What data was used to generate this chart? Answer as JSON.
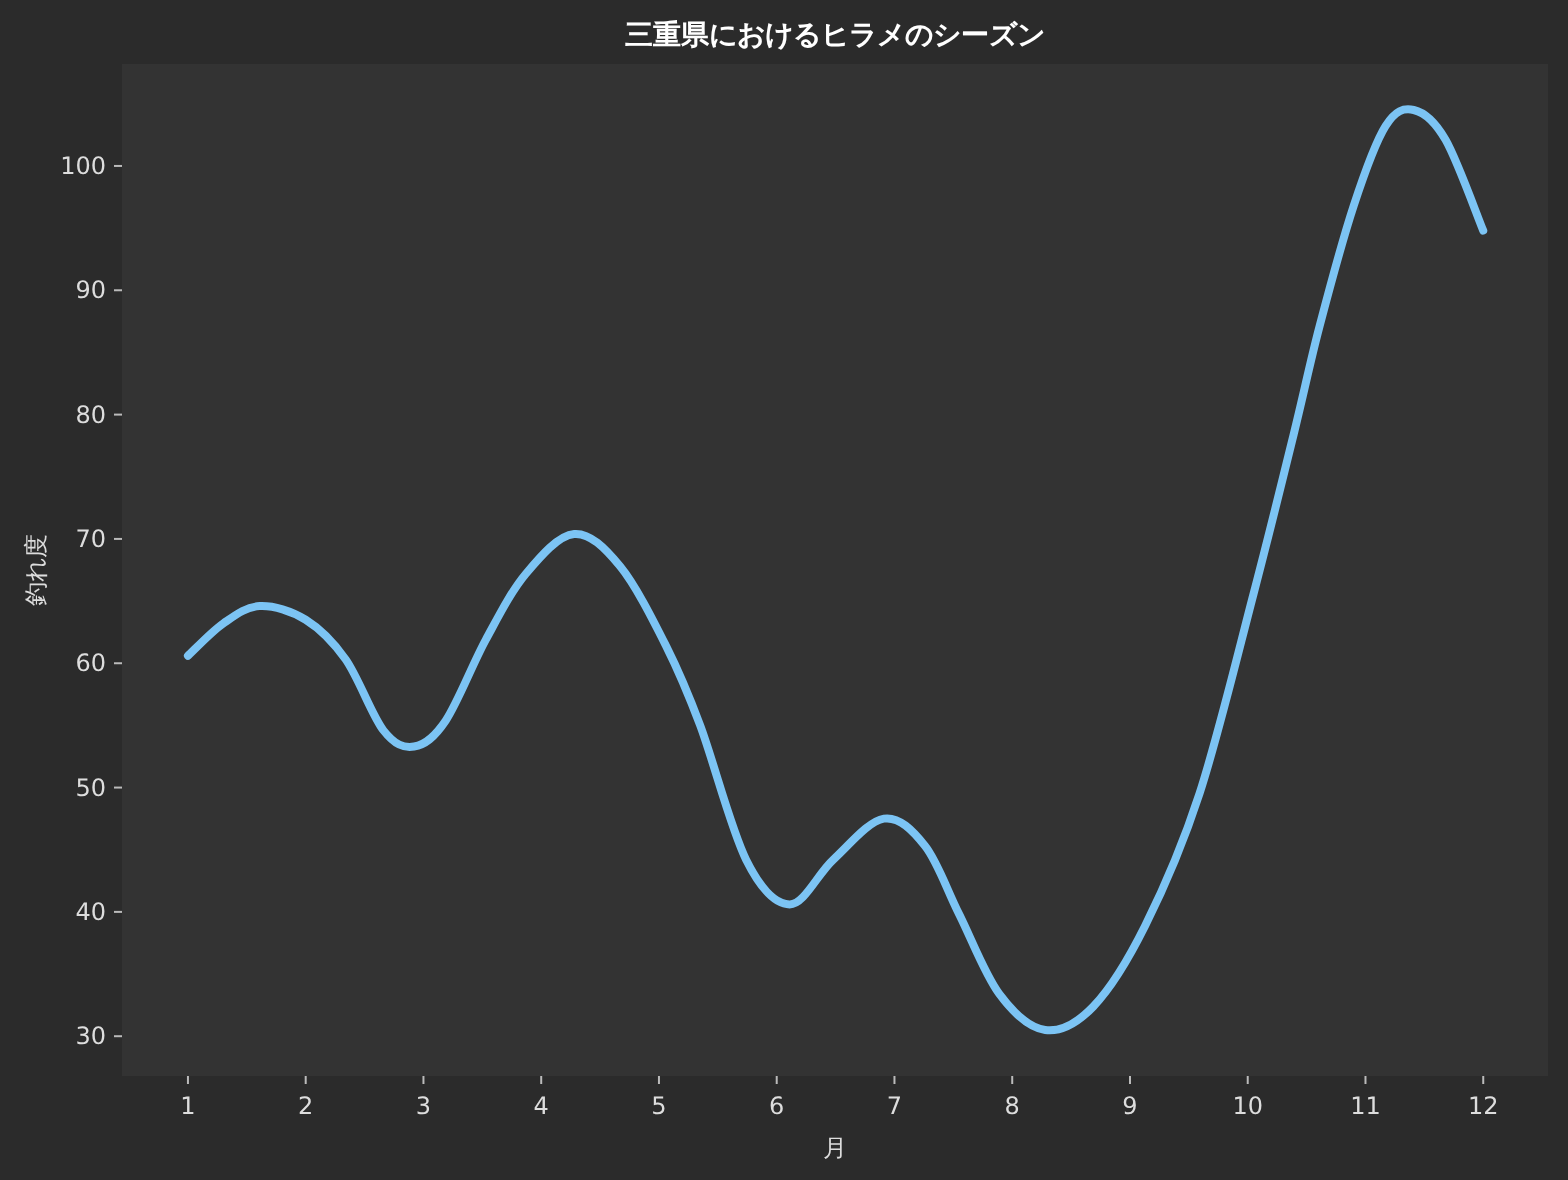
{
  "chart_data": {
    "type": "line",
    "title": "三重県におけるヒラメのシーズン",
    "xlabel": "月",
    "ylabel": "釣れ度",
    "xlim": [
      0.44,
      12.55
    ],
    "ylim": [
      26.8,
      108.2
    ],
    "xticks": [
      1,
      2,
      3,
      4,
      5,
      6,
      7,
      8,
      9,
      10,
      11,
      12
    ],
    "yticks": [
      30,
      40,
      50,
      60,
      70,
      80,
      90,
      100
    ],
    "grid": false,
    "marker": "none",
    "line_style": "solid",
    "series": [
      {
        "color": "#7cc4f4",
        "x": [
          1.0,
          1.3,
          1.61,
          2.0,
          2.34,
          2.66,
          2.92,
          3.19,
          3.53,
          3.87,
          4.28,
          4.67,
          5.06,
          5.35,
          5.74,
          6.11,
          6.48,
          6.91,
          7.26,
          7.55,
          7.89,
          8.28,
          8.69,
          9.13,
          9.59,
          10.05,
          10.39,
          10.61,
          10.9,
          11.17,
          11.41,
          11.68,
          12.0
        ],
        "values": [
          60.6,
          63.2,
          64.6,
          63.5,
          60.3,
          54.6,
          53.3,
          55.4,
          61.9,
          67.2,
          70.4,
          67.8,
          61.4,
          55.0,
          44.2,
          40.6,
          44.2,
          47.5,
          45.3,
          39.8,
          33.4,
          30.5,
          32.4,
          38.9,
          49.5,
          65.6,
          78.4,
          87.1,
          96.8,
          103.2,
          104.5,
          102.1,
          94.8
        ]
      }
    ]
  }
}
